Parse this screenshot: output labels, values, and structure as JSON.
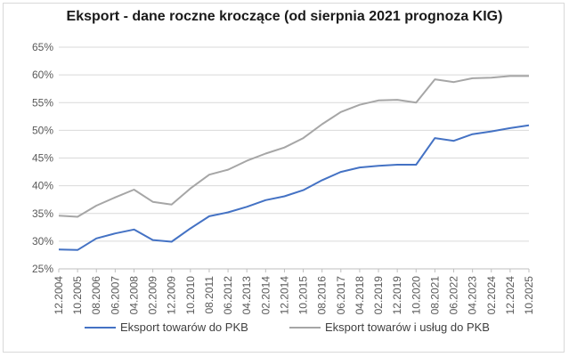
{
  "chart_data": {
    "type": "line",
    "title": "Eksport - dane roczne kroczące (od sierpnia 2021 prognoza KIG)",
    "xlabel": "",
    "ylabel": "",
    "ylim": [
      25,
      65
    ],
    "yticks": [
      "25%",
      "30%",
      "35%",
      "40%",
      "45%",
      "50%",
      "55%",
      "60%",
      "65%"
    ],
    "grid": true,
    "legend_position": "bottom",
    "x": [
      "12.2004",
      "10.2005",
      "08.2006",
      "06.2007",
      "04.2008",
      "02.2009",
      "12.2009",
      "10.2010",
      "08.2011",
      "06.2012",
      "04.2013",
      "02.2014",
      "12.2014",
      "10.2015",
      "08.2016",
      "06.2017",
      "04.2018",
      "02.2019",
      "12.2019",
      "10.2020",
      "08.2021",
      "06.2022",
      "04.2023",
      "02.2024",
      "12.2024",
      "10.2025"
    ],
    "series": [
      {
        "name": "Eksport towarów do PKB",
        "color": "#4472c4",
        "values": [
          28.5,
          28.4,
          30.5,
          31.4,
          32.1,
          30.2,
          29.9,
          32.3,
          34.5,
          35.2,
          36.2,
          37.4,
          38.1,
          39.2,
          41.0,
          42.5,
          43.3,
          43.6,
          43.8,
          43.8,
          48.6,
          48.1,
          49.3,
          49.8,
          50.4,
          50.9
        ]
      },
      {
        "name": "Eksport towarów i usług do PKB",
        "color": "#a6a6a6",
        "values": [
          34.6,
          34.4,
          36.4,
          37.9,
          39.3,
          37.1,
          36.6,
          39.5,
          42.0,
          42.9,
          44.5,
          45.8,
          46.9,
          48.6,
          51.1,
          53.3,
          54.6,
          55.4,
          55.5,
          55.0,
          59.2,
          58.7,
          59.4,
          59.5,
          59.8,
          59.8
        ]
      }
    ]
  }
}
